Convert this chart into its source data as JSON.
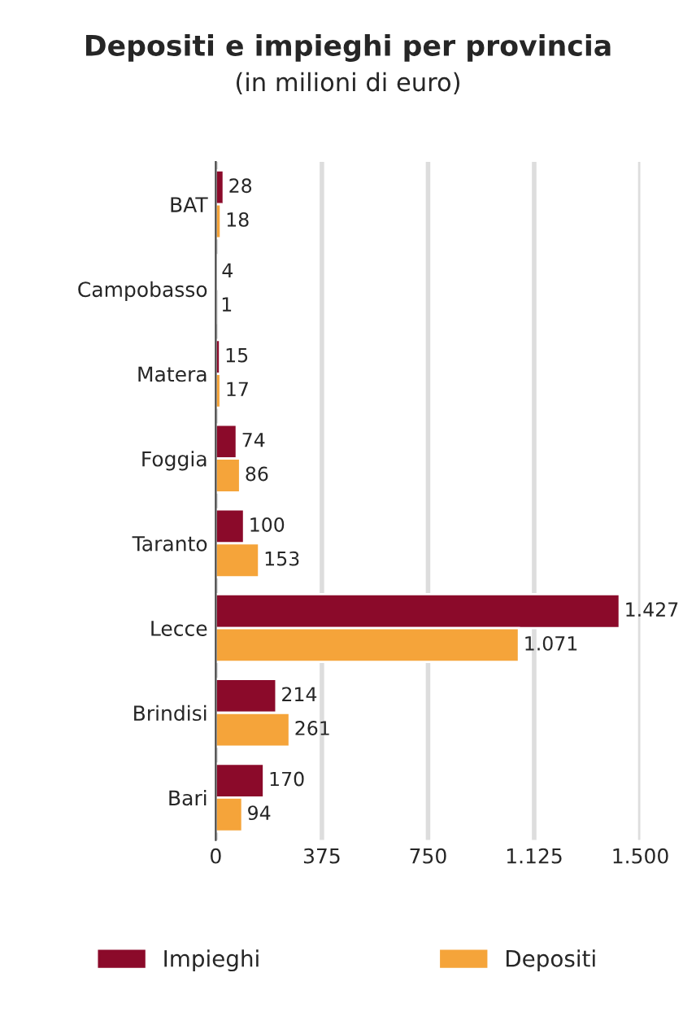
{
  "chart_data": {
    "type": "bar",
    "orientation": "horizontal",
    "title": "Depositi e impieghi per provincia",
    "subtitle": "(in milioni di euro)",
    "categories": [
      "BAT",
      "Campobasso",
      "Matera",
      "Foggia",
      "Taranto",
      "Lecce",
      "Brindisi",
      "Bari"
    ],
    "series": [
      {
        "name": "Impieghi",
        "color": "#8b0a2a",
        "values": [
          28,
          4,
          15,
          74,
          100,
          1427,
          214,
          170
        ],
        "value_labels": [
          "28",
          "4",
          "15",
          "74",
          "100",
          "1.427",
          "214",
          "170"
        ]
      },
      {
        "name": "Depositi",
        "color": "#f5a43a",
        "values": [
          18,
          1,
          17,
          86,
          153,
          1071,
          261,
          94
        ],
        "value_labels": [
          "18",
          "1",
          "17",
          "86",
          "153",
          "1.071",
          "261",
          "94"
        ]
      }
    ],
    "xlim": [
      0,
      1500
    ],
    "xticks": [
      0,
      375,
      750,
      {
        "value": 1125,
        "label": "1.125"
      },
      {
        "value": 1500,
        "label": "1.500"
      }
    ],
    "grid": "x",
    "legend": "bottom"
  }
}
